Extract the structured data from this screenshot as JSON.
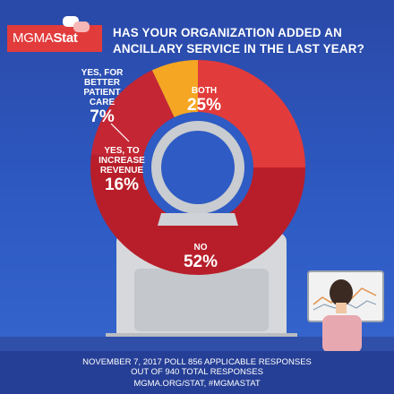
{
  "brand": {
    "logo_text_1": "MGMA",
    "logo_text_2": "Stat",
    "accent": "#e23b3b"
  },
  "question": "HAS YOUR ORGANIZATION ADDED AN ANCILLARY SERVICE IN THE LAST YEAR?",
  "chart_data": {
    "type": "pie",
    "title": "HAS YOUR ORGANIZATION ADDED AN ANCILLARY SERVICE IN THE LAST YEAR?",
    "unit": "%",
    "slices": [
      {
        "label": "BOTH",
        "value": 25,
        "display": "25%",
        "color": "#e23b3b"
      },
      {
        "label": "NO",
        "value": 52,
        "display": "52%",
        "color": "#b81e2a"
      },
      {
        "label": "YES, TO INCREASE REVENUE",
        "value": 16,
        "display": "16%",
        "color": "#c42633"
      },
      {
        "label": "YES, FOR BETTER PATIENT CARE",
        "value": 7,
        "display": "7%",
        "color": "#f5a623"
      }
    ]
  },
  "footer": {
    "line1": "NOVEMBER 7, 2017 POLL  856 APPLICABLE RESPONSES",
    "line2": "OUT OF 940 TOTAL RESPONSES",
    "line3": "MGMA.ORG/STAT, #MGMASTAT"
  }
}
